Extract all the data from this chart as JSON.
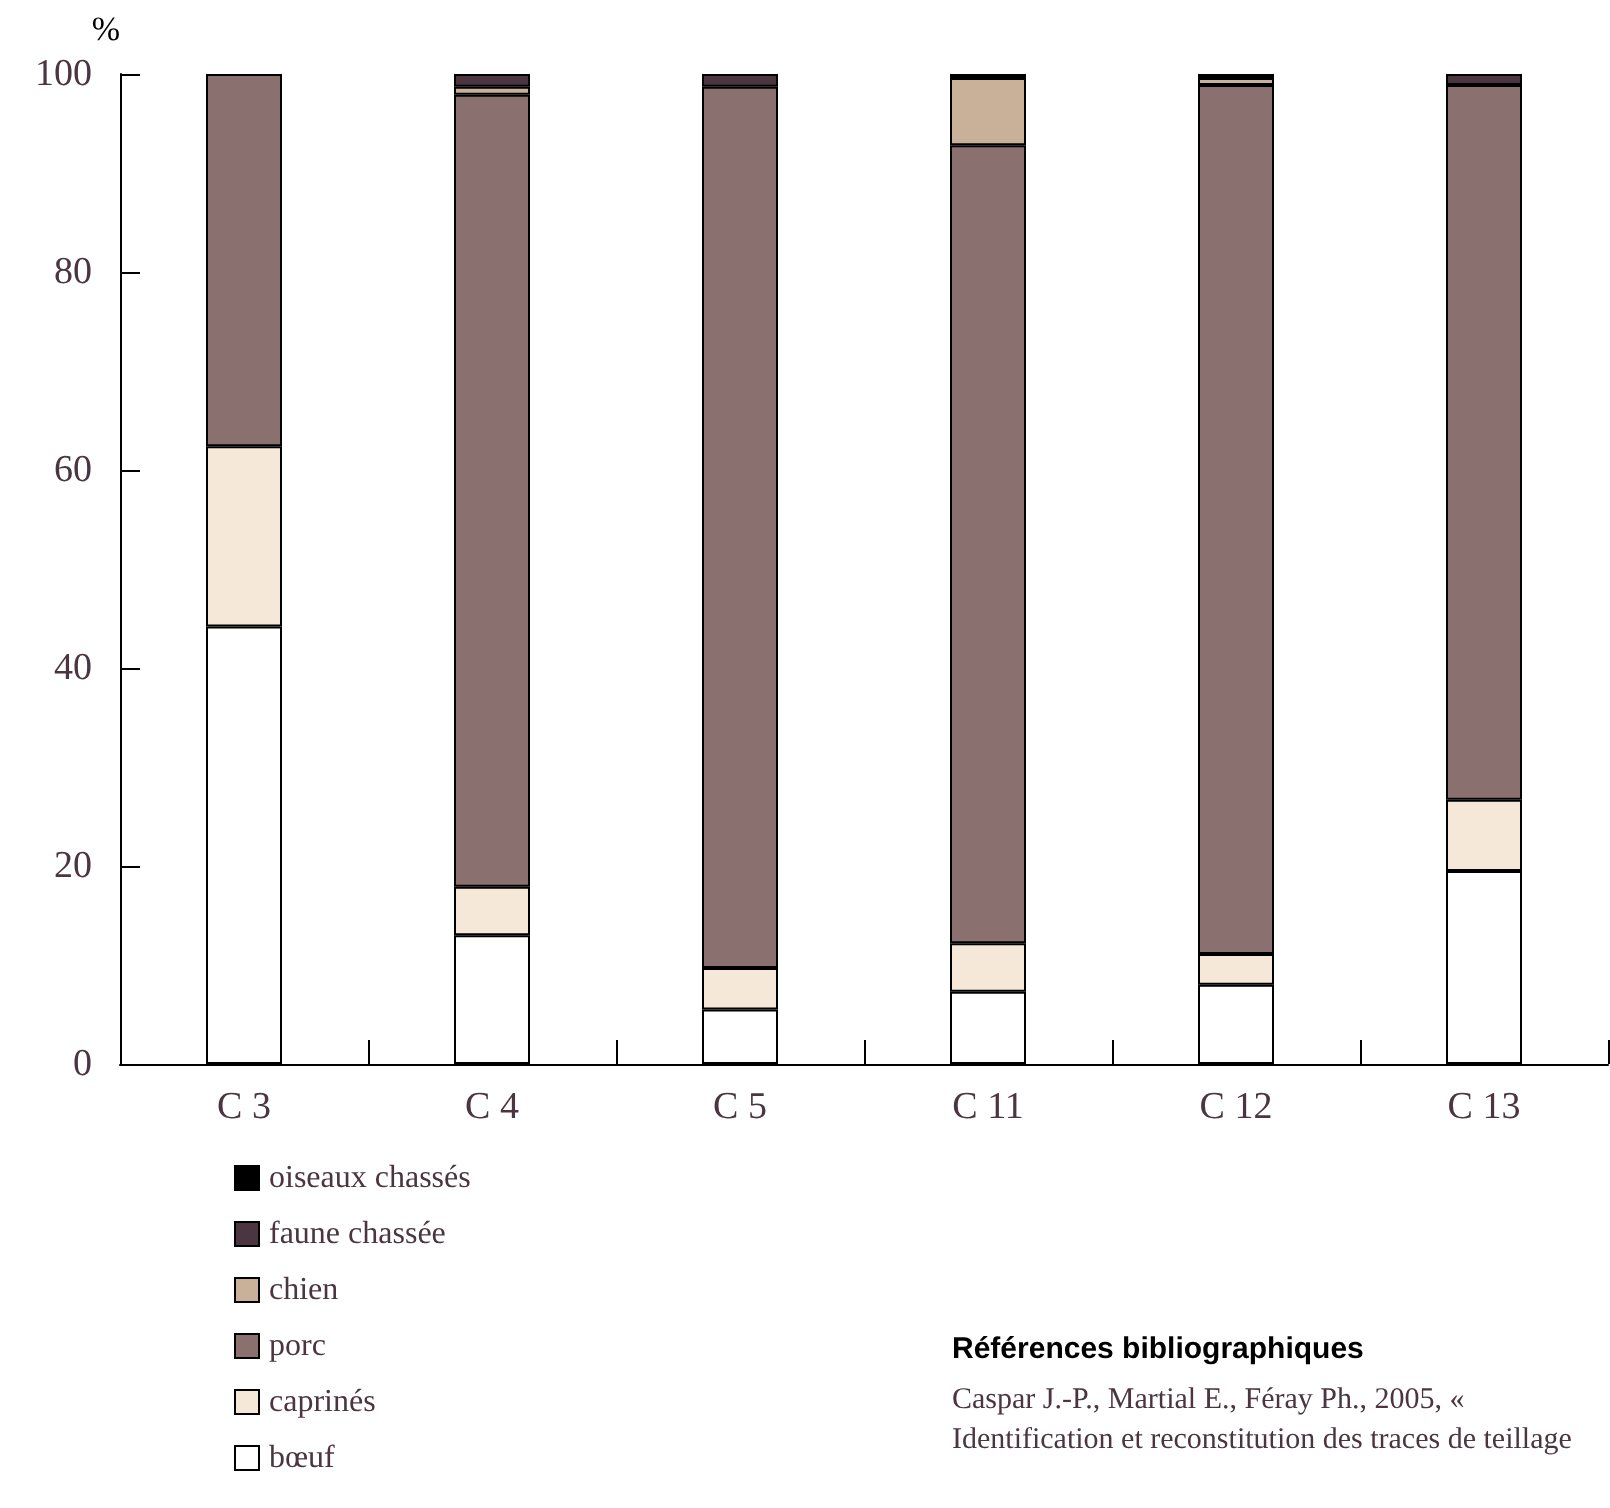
{
  "chart_data": {
    "type": "bar",
    "stacked": true,
    "ylabel": "%",
    "categories": [
      "C 3",
      "C 4",
      "C 5",
      "C 11",
      "C 12",
      "C 13"
    ],
    "ylim": [
      0,
      100
    ],
    "yticks": [
      0,
      20,
      40,
      60,
      80,
      100
    ],
    "grid": false,
    "legend": "bottom left",
    "series": [
      {
        "name": "bœuf",
        "color": "#ffffff",
        "values": [
          44.2,
          13.0,
          5.5,
          7.3,
          8.0,
          19.5
        ]
      },
      {
        "name": "caprinés",
        "color": "#f5e8d8",
        "values": [
          18.2,
          4.9,
          4.2,
          4.9,
          3.1,
          7.2
        ]
      },
      {
        "name": "porc",
        "color": "#8b7070",
        "values": [
          37.6,
          80.0,
          89.0,
          80.6,
          87.8,
          72.2
        ]
      },
      {
        "name": "chien",
        "color": "#c9b098",
        "values": [
          null,
          0.8,
          null,
          6.8,
          0.7,
          null
        ]
      },
      {
        "name": "faune chassée",
        "color": "#4a3540",
        "values": [
          null,
          1.3,
          1.3,
          0.4,
          0.4,
          1.1
        ]
      },
      {
        "name": "oiseaux chassés",
        "color": "#000000",
        "values": [
          null,
          null,
          null,
          null,
          null,
          null
        ]
      }
    ],
    "annotations": [
      "Références bibliographiques",
      "Caspar J.-P., Martial E., Féray Ph., 2005, « Identification et reconstitution des traces de teillage"
    ]
  }
}
